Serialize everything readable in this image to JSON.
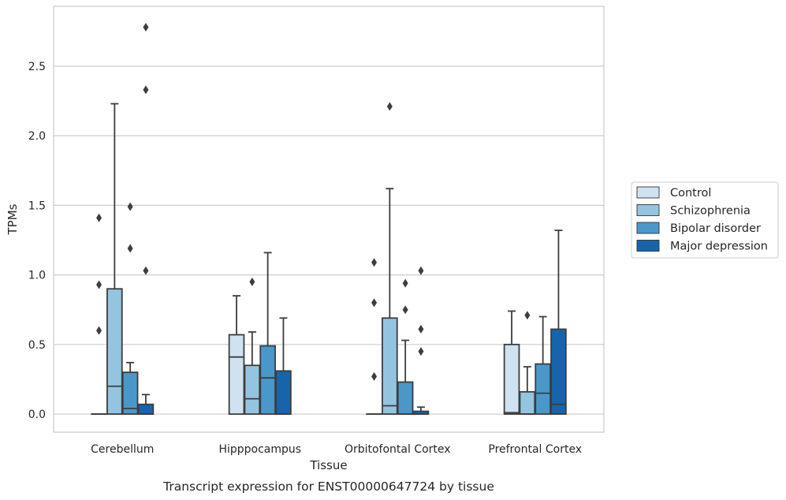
{
  "caption": "Transcript expression for ENST00000647724 by tissue",
  "chart_data": {
    "type": "box",
    "xlabel": "Tissue",
    "ylabel": "TPMs",
    "ylim": [
      -0.13,
      2.93
    ],
    "yticks": [
      0.0,
      0.5,
      1.0,
      1.5,
      2.0,
      2.5
    ],
    "ytick_labels": [
      "0.0",
      "0.5",
      "1.0",
      "1.5",
      "2.0",
      "2.5"
    ],
    "grid": "horizontal",
    "legend_position": "right",
    "categories": [
      "Cerebellum",
      "Hipppocampus",
      "Orbitofontal Cortex",
      "Prefrontal Cortex"
    ],
    "series": [
      {
        "name": "Control",
        "color": "#d0e1f2",
        "boxes": [
          {
            "q1": 0.0,
            "median": 0.0,
            "q3": 0.0,
            "whislo": 0.0,
            "whishi": 0.0,
            "fliers": [
              0.6,
              0.93,
              1.41
            ]
          },
          {
            "q1": 0.0,
            "median": 0.41,
            "q3": 0.57,
            "whislo": 0.0,
            "whishi": 0.85,
            "fliers": []
          },
          {
            "q1": 0.0,
            "median": 0.0,
            "q3": 0.0,
            "whislo": 0.0,
            "whishi": 0.0,
            "fliers": [
              0.27,
              0.8,
              1.09
            ]
          },
          {
            "q1": 0.0,
            "median": 0.01,
            "q3": 0.5,
            "whislo": 0.0,
            "whishi": 0.74,
            "fliers": []
          }
        ]
      },
      {
        "name": "Schizophrenia",
        "color": "#94c4df",
        "boxes": [
          {
            "q1": 0.0,
            "median": 0.2,
            "q3": 0.9,
            "whislo": 0.0,
            "whishi": 2.23,
            "fliers": []
          },
          {
            "q1": 0.0,
            "median": 0.11,
            "q3": 0.35,
            "whislo": 0.0,
            "whishi": 0.59,
            "fliers": [
              0.95
            ]
          },
          {
            "q1": 0.0,
            "median": 0.06,
            "q3": 0.69,
            "whislo": 0.0,
            "whishi": 1.62,
            "fliers": [
              2.21
            ]
          },
          {
            "q1": 0.0,
            "median": 0.0,
            "q3": 0.16,
            "whislo": 0.0,
            "whishi": 0.34,
            "fliers": [
              0.71
            ]
          }
        ]
      },
      {
        "name": "Bipolar disorder",
        "color": "#4a98c9",
        "boxes": [
          {
            "q1": 0.0,
            "median": 0.04,
            "q3": 0.3,
            "whislo": 0.0,
            "whishi": 0.37,
            "fliers": [
              1.19,
              1.49
            ]
          },
          {
            "q1": 0.0,
            "median": 0.26,
            "q3": 0.49,
            "whislo": 0.0,
            "whishi": 1.16,
            "fliers": []
          },
          {
            "q1": 0.0,
            "median": 0.0,
            "q3": 0.23,
            "whislo": 0.0,
            "whishi": 0.53,
            "fliers": [
              0.75,
              0.94
            ]
          },
          {
            "q1": 0.0,
            "median": 0.15,
            "q3": 0.36,
            "whislo": 0.0,
            "whishi": 0.7,
            "fliers": []
          }
        ]
      },
      {
        "name": "Major depression",
        "color": "#1764ab",
        "boxes": [
          {
            "q1": 0.0,
            "median": 0.0,
            "q3": 0.07,
            "whislo": 0.0,
            "whishi": 0.14,
            "fliers": [
              1.03,
              2.33,
              2.78
            ]
          },
          {
            "q1": 0.0,
            "median": 0.0,
            "q3": 0.31,
            "whislo": 0.0,
            "whishi": 0.69,
            "fliers": []
          },
          {
            "q1": 0.0,
            "median": 0.0,
            "q3": 0.02,
            "whislo": 0.0,
            "whishi": 0.05,
            "fliers": [
              0.45,
              0.61,
              1.03
            ]
          },
          {
            "q1": 0.0,
            "median": 0.07,
            "q3": 0.61,
            "whislo": 0.0,
            "whishi": 1.32,
            "fliers": []
          }
        ]
      }
    ]
  }
}
